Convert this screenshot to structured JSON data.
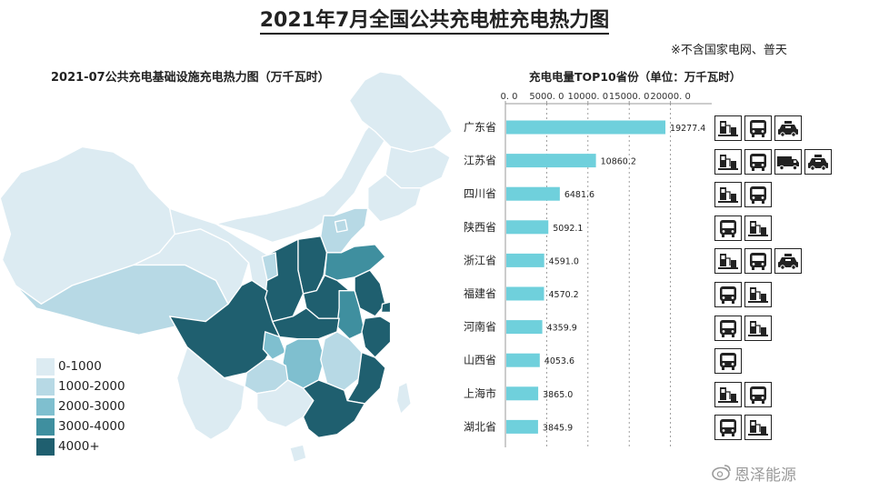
{
  "page": {
    "main_title": "2021年7月全国公共充电桩充电热力图",
    "note": "※不含国家电网、普天",
    "watermark": "恩泽能源"
  },
  "colors": {
    "level_1": "#dcebf2",
    "level_2": "#b7d9e5",
    "level_3": "#7fbfcf",
    "level_4": "#3f8f9f",
    "level_5": "#1f5f6f",
    "bar": "#6fd0dc",
    "map_border": "#ffffff"
  },
  "map": {
    "title": "2021-07公共充电基础设施充电热力图（万千瓦时）",
    "legend": [
      {
        "label": "0-1000",
        "color": "#dcebf2"
      },
      {
        "label": "1000-2000",
        "color": "#b7d9e5"
      },
      {
        "label": "2000-3000",
        "color": "#7fbfcf"
      },
      {
        "label": "3000-4000",
        "color": "#3f8f9f"
      },
      {
        "label": "4000+",
        "color": "#1f5f6f"
      }
    ]
  },
  "chart_data": {
    "type": "bar",
    "orientation": "horizontal",
    "title": "充电电量TOP10省份（单位：万千瓦时）",
    "categories": [
      "广东省",
      "江苏省",
      "四川省",
      "陕西省",
      "浙江省",
      "福建省",
      "河南省",
      "山西省",
      "上海市",
      "湖北省"
    ],
    "values": [
      19277.4,
      10860.2,
      6481.6,
      5092.1,
      4591.0,
      4570.2,
      4359.9,
      4053.6,
      3865.0,
      3845.9
    ],
    "value_labels": [
      "19277.4",
      "10860.2",
      "6481.6",
      "5092.1",
      "4591.0",
      "4570.2",
      "4359.9",
      "4053.6",
      "3865.0",
      "3845.9"
    ],
    "xlim": [
      0,
      25000
    ],
    "x_ticks": [
      0,
      5000,
      10000,
      15000,
      20000
    ],
    "x_tick_labels": [
      "0. 0",
      "5000. 0",
      "10000. 0",
      "15000. 0",
      "20000. 0"
    ],
    "axis_position": "top",
    "grid": true
  },
  "vehicle_icons": [
    [
      "charger-icon",
      "bus-icon",
      "taxi-icon"
    ],
    [
      "charger-icon",
      "bus-icon",
      "truck-icon",
      "taxi-icon"
    ],
    [
      "charger-icon",
      "bus-icon"
    ],
    [
      "bus-icon",
      "charger-icon"
    ],
    [
      "charger-icon",
      "bus-icon",
      "taxi-icon"
    ],
    [
      "bus-icon",
      "charger-icon"
    ],
    [
      "bus-icon",
      "charger-icon"
    ],
    [
      "bus-icon"
    ],
    [
      "charger-icon",
      "bus-icon"
    ],
    [
      "bus-icon",
      "charger-icon"
    ]
  ]
}
